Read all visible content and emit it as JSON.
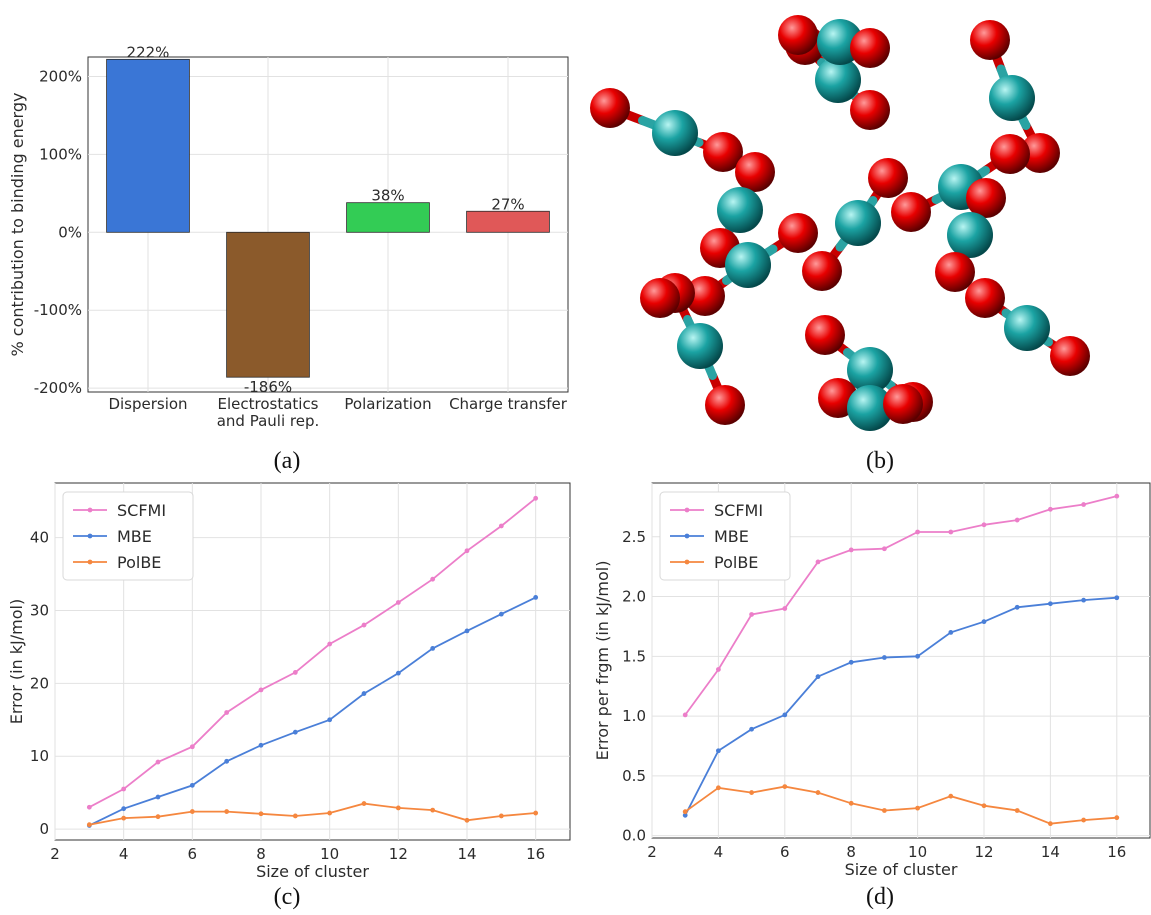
{
  "captions": {
    "a": "(a)",
    "b": "(b)",
    "c": "(c)",
    "d": "(d)"
  },
  "colors": {
    "dispersion": "#3a76d6",
    "electrostatics": "#8b5a2b",
    "polarization": "#33cc55",
    "charge_transfer": "#e05858",
    "scfmi": "#ec7ec9",
    "mbe": "#4a7fd8",
    "polbe": "#f5873f",
    "carbon": "#1ba3a3",
    "oxygen": "#e80000",
    "bond_c": "#2aa3a3",
    "bond_o": "#c80000"
  },
  "chart_data": [
    {
      "id": "a",
      "type": "bar",
      "categories": [
        "Dispersion",
        "Electrostatics\nand Pauli rep.",
        "Polarization",
        "Charge transfer"
      ],
      "values": [
        222,
        -186,
        38,
        27
      ],
      "value_labels": [
        "222%",
        "-186%",
        "38%",
        "27%"
      ],
      "title": "",
      "xlabel": "",
      "ylabel": "% contribution to binding energy",
      "ylim": [
        -205,
        225
      ],
      "yticks": [
        -200,
        -100,
        0,
        100,
        200
      ],
      "ytick_labels": [
        "-200%",
        "-100%",
        "0%",
        "100%",
        "200%"
      ],
      "grid": true
    },
    {
      "id": "c",
      "type": "line",
      "x": [
        3,
        4,
        5,
        6,
        7,
        8,
        9,
        10,
        11,
        12,
        13,
        14,
        15,
        16
      ],
      "series": [
        {
          "name": "SCFMI",
          "values": [
            3.0,
            5.5,
            9.2,
            11.3,
            16.0,
            19.1,
            21.5,
            25.4,
            28.0,
            31.1,
            34.3,
            38.2,
            41.6,
            45.4
          ]
        },
        {
          "name": "MBE",
          "values": [
            0.5,
            2.8,
            4.4,
            6.0,
            9.3,
            11.5,
            13.3,
            15.0,
            18.6,
            21.4,
            24.8,
            27.2,
            29.5,
            31.8
          ]
        },
        {
          "name": "PolBE",
          "values": [
            0.6,
            1.5,
            1.7,
            2.4,
            2.4,
            2.1,
            1.8,
            2.2,
            3.5,
            2.9,
            2.6,
            1.2,
            1.8,
            2.2
          ]
        }
      ],
      "title": "",
      "xlabel": "Size of cluster",
      "ylabel": "Error (in kJ/mol)",
      "xlim": [
        2,
        17
      ],
      "ylim": [
        -1.5,
        47.5
      ],
      "xticks": [
        2,
        4,
        6,
        8,
        10,
        12,
        14,
        16
      ],
      "yticks": [
        0,
        10,
        20,
        30,
        40
      ],
      "grid": true,
      "legend": "top-left"
    },
    {
      "id": "d",
      "type": "line",
      "x": [
        3,
        4,
        5,
        6,
        7,
        8,
        9,
        10,
        11,
        12,
        13,
        14,
        15,
        16
      ],
      "series": [
        {
          "name": "SCFMI",
          "values": [
            1.01,
            1.39,
            1.85,
            1.9,
            2.29,
            2.39,
            2.4,
            2.54,
            2.54,
            2.6,
            2.64,
            2.73,
            2.77,
            2.84
          ]
        },
        {
          "name": "MBE",
          "values": [
            0.17,
            0.71,
            0.89,
            1.01,
            1.33,
            1.45,
            1.49,
            1.5,
            1.7,
            1.79,
            1.91,
            1.94,
            1.97,
            1.99
          ]
        },
        {
          "name": "PolBE",
          "values": [
            0.2,
            0.4,
            0.36,
            0.41,
            0.36,
            0.27,
            0.21,
            0.23,
            0.33,
            0.25,
            0.21,
            0.1,
            0.13,
            0.15
          ]
        }
      ],
      "title": "",
      "xlabel": "Size of cluster",
      "ylabel": "Error per frgm (in kJ/mol)",
      "xlim": [
        2,
        17
      ],
      "ylim": [
        -0.02,
        2.95
      ],
      "xticks": [
        2,
        4,
        6,
        8,
        10,
        12,
        14,
        16
      ],
      "yticks": [
        0.0,
        0.5,
        1.0,
        1.5,
        2.0,
        2.5
      ],
      "grid": true,
      "legend": "top-left"
    }
  ]
}
